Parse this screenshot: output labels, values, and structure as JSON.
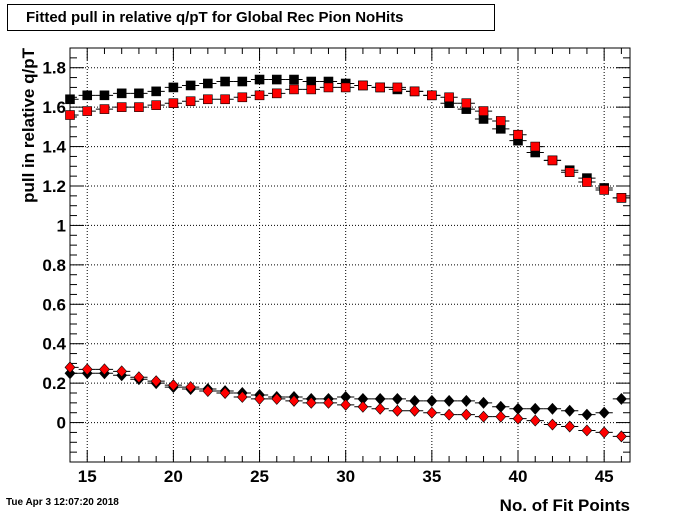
{
  "title": "Fitted pull in relative q/pT for Global Rec Pion NoHits",
  "timestamp": "Tue Apr  3 12:07:20 2018",
  "chart_data": {
    "type": "scatter",
    "title": "Fitted pull in relative q/pT for Global Rec Pion NoHits",
    "xlabel": "No. of Fit Points",
    "ylabel": "pull in relative q/pT",
    "xlim": [
      14,
      46.5
    ],
    "ylim": [
      -0.2,
      1.9
    ],
    "grid": true,
    "x_ticks": [
      15,
      20,
      25,
      30,
      35,
      40,
      45
    ],
    "y_ticks": [
      0,
      0.2,
      0.4,
      0.6,
      0.8,
      1,
      1.2,
      1.4,
      1.6,
      1.8
    ],
    "x": [
      14,
      15,
      16,
      17,
      18,
      19,
      20,
      21,
      22,
      23,
      24,
      25,
      26,
      27,
      28,
      29,
      30,
      31,
      32,
      33,
      34,
      35,
      36,
      37,
      38,
      39,
      40,
      41,
      42,
      43,
      44,
      45,
      46
    ],
    "series": [
      {
        "marker": "square",
        "color": "#000000",
        "values": [
          1.64,
          1.66,
          1.66,
          1.67,
          1.67,
          1.68,
          1.7,
          1.71,
          1.72,
          1.73,
          1.73,
          1.74,
          1.74,
          1.74,
          1.73,
          1.73,
          1.72,
          1.71,
          1.7,
          1.69,
          1.68,
          1.66,
          1.62,
          1.59,
          1.54,
          1.49,
          1.43,
          1.37,
          1.33,
          1.28,
          1.24,
          1.19,
          1.14
        ]
      },
      {
        "marker": "square",
        "color": "#ff0000",
        "values": [
          1.56,
          1.58,
          1.59,
          1.6,
          1.6,
          1.61,
          1.62,
          1.63,
          1.64,
          1.64,
          1.65,
          1.66,
          1.67,
          1.69,
          1.69,
          1.7,
          1.7,
          1.71,
          1.7,
          1.7,
          1.68,
          1.66,
          1.65,
          1.62,
          1.58,
          1.53,
          1.46,
          1.4,
          1.33,
          1.27,
          1.22,
          1.18,
          1.14
        ]
      },
      {
        "marker": "diamond",
        "color": "#000000",
        "values": [
          0.25,
          0.25,
          0.25,
          0.24,
          0.22,
          0.2,
          0.18,
          0.17,
          0.17,
          0.16,
          0.15,
          0.14,
          0.13,
          0.13,
          0.12,
          0.12,
          0.13,
          0.12,
          0.12,
          0.12,
          0.11,
          0.11,
          0.11,
          0.11,
          0.1,
          0.08,
          0.07,
          0.07,
          0.07,
          0.06,
          0.04,
          0.05,
          0.12
        ]
      },
      {
        "marker": "diamond",
        "color": "#ff0000",
        "values": [
          0.28,
          0.27,
          0.27,
          0.26,
          0.23,
          0.21,
          0.19,
          0.18,
          0.16,
          0.15,
          0.13,
          0.12,
          0.12,
          0.11,
          0.1,
          0.1,
          0.09,
          0.08,
          0.07,
          0.06,
          0.06,
          0.05,
          0.04,
          0.04,
          0.03,
          0.03,
          0.02,
          0.01,
          -0.01,
          -0.02,
          -0.04,
          -0.05,
          -0.07
        ]
      }
    ]
  }
}
